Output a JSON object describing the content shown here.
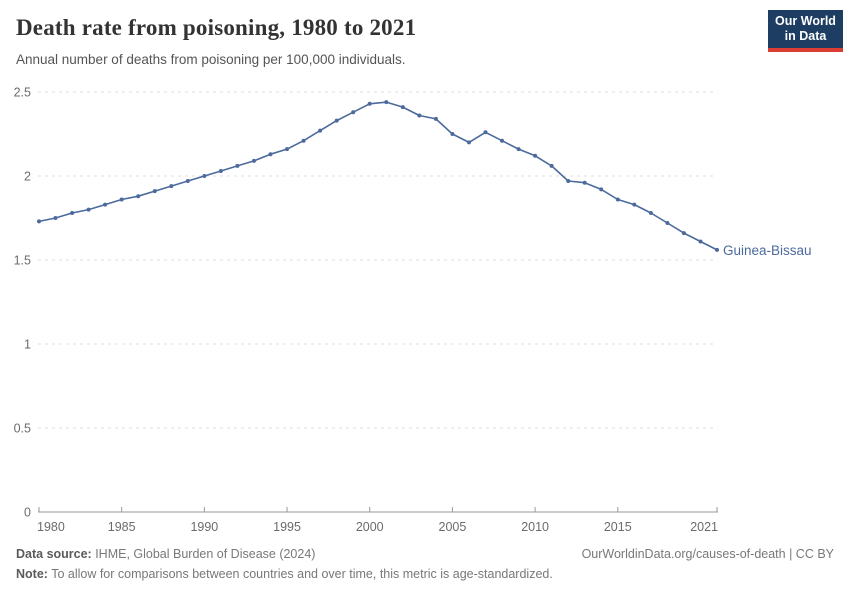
{
  "header": {
    "title": "Death rate from poisoning, 1980 to 2021",
    "subtitle": "Annual number of deaths from poisoning per 100,000 individuals.",
    "logo": {
      "line1": "Our World",
      "line2": "in Data"
    }
  },
  "chart_data": {
    "type": "line",
    "title": "Death rate from poisoning, 1980 to 2021",
    "subtitle": "Annual number of deaths from poisoning per 100,000 individuals.",
    "entity": "Guinea-Bissau",
    "x": [
      1980,
      1981,
      1982,
      1983,
      1984,
      1985,
      1986,
      1987,
      1988,
      1989,
      1990,
      1991,
      1992,
      1993,
      1994,
      1995,
      1996,
      1997,
      1998,
      1999,
      2000,
      2001,
      2002,
      2003,
      2004,
      2005,
      2006,
      2007,
      2008,
      2009,
      2010,
      2011,
      2012,
      2013,
      2014,
      2015,
      2016,
      2017,
      2018,
      2019,
      2020,
      2021
    ],
    "series": [
      {
        "name": "Guinea-Bissau",
        "values": [
          1.73,
          1.75,
          1.78,
          1.8,
          1.83,
          1.86,
          1.88,
          1.91,
          1.94,
          1.97,
          2.0,
          2.03,
          2.06,
          2.09,
          2.13,
          2.16,
          2.21,
          2.27,
          2.33,
          2.38,
          2.43,
          2.44,
          2.41,
          2.36,
          2.34,
          2.25,
          2.2,
          2.26,
          2.21,
          2.16,
          2.12,
          2.06,
          1.97,
          1.96,
          1.92,
          1.86,
          1.83,
          1.78,
          1.72,
          1.66,
          1.61,
          1.56
        ]
      }
    ],
    "xlabel": "",
    "ylabel": "",
    "ylim": [
      0,
      2.5
    ],
    "xlim": [
      1980,
      2021
    ],
    "y_ticks": [
      0,
      0.5,
      1,
      1.5,
      2,
      2.5
    ],
    "x_ticks": [
      1980,
      1985,
      1990,
      1995,
      2000,
      2005,
      2010,
      2015,
      2021
    ],
    "grid": "horizontal-dashed",
    "legend": "inline-end-label",
    "colors": {
      "line": "#4C6A9C",
      "end_label": "#4C6A9C",
      "grid": "#dcdcdc",
      "axis": "#999999",
      "tick_text": "#6b6b6b"
    }
  },
  "footer": {
    "data_source_label": "Data source:",
    "data_source_value": " IHME, Global Burden of Disease (2024)",
    "link": "OurWorldinData.org/causes-of-death | CC BY",
    "note_label": "Note:",
    "note_value": " To allow for comparisons between countries and over time, this metric is age-standardized."
  }
}
